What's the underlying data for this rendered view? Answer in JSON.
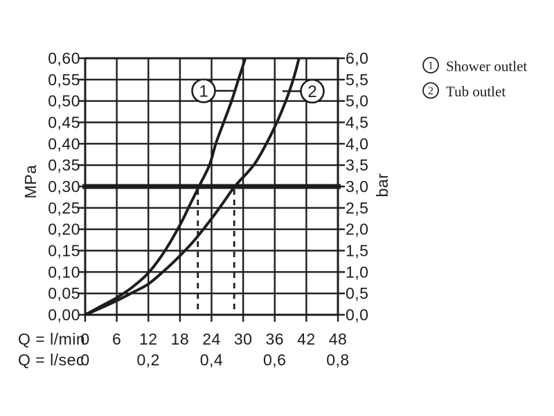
{
  "page": {
    "background": "#ffffff",
    "ink_color": "#1d1d1b"
  },
  "chart_data": {
    "type": "line",
    "title": "",
    "grid": true,
    "x_axis": {
      "row1_label": "Q = l/min",
      "row1_ticks": [
        "0",
        "6",
        "12",
        "18",
        "24",
        "30",
        "36",
        "42",
        "48"
      ],
      "row2_label": "Q = l/sec",
      "row2_ticks": [
        "0",
        "0,2",
        "0,4",
        "0,6",
        "0,8"
      ],
      "min_lmin": 0,
      "max_lmin": 48,
      "grid_step_lmin": 6
    },
    "y_axis_left": {
      "unit": "MPa",
      "tick_labels": [
        "0,60",
        "0,55",
        "0,50",
        "0,45",
        "0,40",
        "0,35",
        "0,30",
        "0,25",
        "0,20",
        "0,15",
        "0,10",
        "0,05",
        "0,00"
      ],
      "min_mpa": 0,
      "max_mpa": 0.6,
      "grid_step_mpa": 0.05
    },
    "y_axis_right": {
      "unit": "bar",
      "tick_labels": [
        "6,0",
        "5,5",
        "5,0",
        "4,5",
        "4,0",
        "3,5",
        "3,0",
        "2,5",
        "2,0",
        "1,5",
        "1,0",
        "0,5",
        "0,0"
      ]
    },
    "reference_line": {
      "mpa": 0.3,
      "bar_label": "3,0"
    },
    "guide_lines_lmin": [
      21.4,
      28.3
    ],
    "series": [
      {
        "name": "Shower outlet",
        "marker": "1",
        "points_lmin_mpa": [
          [
            0,
            0
          ],
          [
            3,
            0.02
          ],
          [
            6,
            0.04
          ],
          [
            9,
            0.065
          ],
          [
            12,
            0.098
          ],
          [
            15,
            0.147
          ],
          [
            18,
            0.21
          ],
          [
            20,
            0.26
          ],
          [
            21.6,
            0.3
          ],
          [
            23.6,
            0.35
          ],
          [
            24.8,
            0.4
          ],
          [
            26.3,
            0.45
          ],
          [
            27.8,
            0.5
          ],
          [
            29.1,
            0.55
          ],
          [
            30.4,
            0.6
          ],
          [
            30.9,
            0.63
          ]
        ]
      },
      {
        "name": "Tub outlet",
        "marker": "2",
        "points_lmin_mpa": [
          [
            0,
            0
          ],
          [
            3,
            0.016
          ],
          [
            6,
            0.033
          ],
          [
            9,
            0.052
          ],
          [
            12,
            0.072
          ],
          [
            15,
            0.103
          ],
          [
            18,
            0.138
          ],
          [
            21,
            0.178
          ],
          [
            24,
            0.225
          ],
          [
            26.2,
            0.262
          ],
          [
            28.4,
            0.3
          ],
          [
            32,
            0.35
          ],
          [
            34.4,
            0.4
          ],
          [
            36.4,
            0.45
          ],
          [
            38.1,
            0.5
          ],
          [
            39.5,
            0.55
          ],
          [
            40.6,
            0.6
          ],
          [
            41.1,
            0.63
          ]
        ]
      }
    ],
    "callouts": [
      {
        "digit": "1"
      },
      {
        "digit": "2"
      }
    ]
  },
  "legend": {
    "items": [
      {
        "marker": "1",
        "label": "Shower outlet"
      },
      {
        "marker": "2",
        "label": "Tub outlet"
      }
    ]
  }
}
